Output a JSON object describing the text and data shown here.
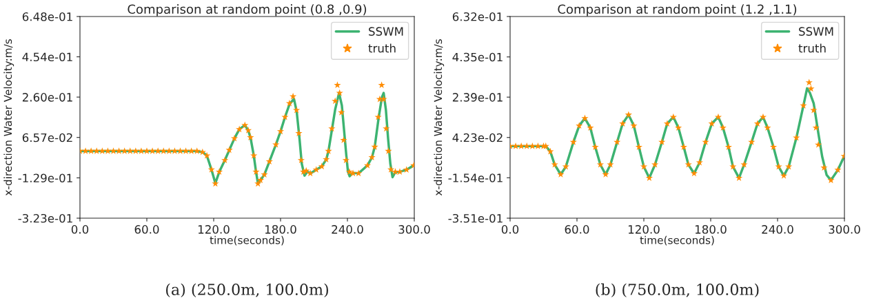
{
  "chart_data": [
    {
      "type": "line",
      "title": "Comparison at random point (0.8 ,0.9)",
      "xlabel": "time(seconds)",
      "ylabel": "x-direction Water Velocity:m/s",
      "annotations": [
        "(a) (250.0m, 100.0m)"
      ],
      "legend": "top right",
      "grid": false,
      "xlim": [
        0,
        300
      ],
      "xticks": [
        {
          "value": 0,
          "label": "0.0"
        },
        {
          "value": 60,
          "label": "60.0"
        },
        {
          "value": 120,
          "label": "120.0"
        },
        {
          "value": 180,
          "label": "180.0"
        },
        {
          "value": 240,
          "label": "240.0"
        },
        {
          "value": 300,
          "label": "300.0"
        }
      ],
      "ylim": [
        -0.323,
        0.648
      ],
      "yticks": [
        {
          "value": -0.323,
          "label": "-3.23e-01"
        },
        {
          "value": -0.129,
          "label": "-1.29e-01"
        },
        {
          "value": 0.0657,
          "label": "6.57e-02"
        },
        {
          "value": 0.26,
          "label": "2.60e-01"
        },
        {
          "value": 0.454,
          "label": "4.54e-01"
        },
        {
          "value": 0.648,
          "label": "6.48e-01"
        }
      ],
      "series": [
        {
          "name": "SSWM",
          "color": "#3cb371",
          "line_style": "solid",
          "x": [
            0,
            105,
            110,
            113.9,
            118,
            121.5,
            125,
            130,
            138.6,
            143,
            148,
            151,
            153,
            156,
            158,
            159.7,
            162,
            165.5,
            170,
            175.8,
            180,
            184,
            188,
            192,
            194.5,
            197,
            199,
            201.5,
            204,
            207,
            212,
            217,
            221,
            223,
            226,
            229,
            232.5,
            235,
            237,
            239,
            240.5,
            242,
            245,
            250,
            258,
            262,
            264.5,
            268,
            271,
            272.5,
            274.5,
            276.5,
            278.5,
            280.5,
            283,
            287,
            293,
            299.5
          ],
          "values": [
            0.0,
            0.0,
            -0.005,
            -0.022,
            -0.089,
            -0.155,
            -0.1,
            -0.044,
            0.061,
            0.105,
            0.125,
            0.1,
            0.066,
            -0.022,
            -0.1,
            -0.155,
            -0.14,
            -0.113,
            -0.05,
            0.031,
            0.095,
            0.164,
            0.225,
            0.252,
            0.19,
            0.06,
            -0.06,
            -0.118,
            -0.1,
            -0.107,
            -0.09,
            -0.074,
            -0.04,
            0.0,
            0.1,
            0.2,
            0.28,
            0.22,
            0.1,
            -0.02,
            -0.1,
            -0.121,
            -0.105,
            -0.107,
            -0.069,
            -0.03,
            0.02,
            0.16,
            0.26,
            0.28,
            0.2,
            0.06,
            -0.06,
            -0.126,
            -0.1,
            -0.1,
            -0.09,
            -0.069
          ]
        },
        {
          "name": "truth",
          "type": "scatter",
          "marker": "star",
          "color": "#ff8c00",
          "x": [
            0,
            5,
            10,
            15,
            20,
            25,
            30,
            35,
            40,
            45,
            50,
            55,
            60,
            65,
            70,
            75,
            80,
            85,
            90,
            95,
            100,
            105,
            110,
            113.9,
            118,
            121.5,
            125,
            130,
            134,
            138.6,
            143,
            148,
            151,
            153,
            156,
            158,
            159.7,
            162,
            165.5,
            170,
            175.8,
            180,
            184,
            188,
            191.2,
            194.3,
            196.4,
            198.5,
            200.5,
            203,
            206.7,
            212,
            217,
            221,
            223,
            226,
            229,
            231,
            233,
            234.6,
            236.6,
            238.7,
            241.8,
            245,
            250,
            258,
            262,
            264.5,
            267.6,
            269,
            270.7,
            272.5,
            274.8,
            276.8,
            279,
            283,
            287,
            293,
            299.5
          ],
          "values": [
            0.0,
            0.0,
            0.0,
            0.0,
            0.0,
            0.0,
            0.0,
            0.0,
            0.0,
            0.0,
            0.0,
            0.0,
            0.0,
            0.0,
            0.0,
            0.0,
            0.0,
            0.0,
            0.0,
            0.0,
            0.0,
            0.0,
            -0.005,
            -0.022,
            -0.089,
            -0.157,
            -0.1,
            -0.044,
            0.005,
            0.061,
            0.105,
            0.125,
            0.1,
            0.066,
            -0.022,
            -0.1,
            -0.157,
            -0.14,
            -0.113,
            -0.05,
            0.031,
            0.095,
            0.164,
            0.23,
            0.263,
            0.197,
            0.086,
            -0.044,
            -0.1,
            -0.095,
            -0.107,
            -0.09,
            -0.074,
            -0.04,
            0.0,
            0.108,
            0.241,
            0.318,
            0.28,
            0.186,
            0.053,
            -0.044,
            -0.1,
            -0.107,
            -0.107,
            -0.069,
            -0.03,
            0.02,
            0.164,
            0.25,
            0.318,
            0.25,
            0.108,
            0.0,
            -0.089,
            -0.1,
            -0.1,
            -0.09,
            -0.069
          ]
        }
      ]
    },
    {
      "type": "line",
      "title": "Comparison at random point (1.2 ,1.1)",
      "xlabel": "time(seconds)",
      "ylabel": "x-direction Water Velocity:m/s",
      "annotations": [
        "(b) (750.0m, 100.0m)"
      ],
      "legend": "top right",
      "grid": false,
      "xlim": [
        0,
        300
      ],
      "xticks": [
        {
          "value": 0,
          "label": "0.0"
        },
        {
          "value": 60,
          "label": "60.0"
        },
        {
          "value": 120,
          "label": "120.0"
        },
        {
          "value": 180,
          "label": "180.0"
        },
        {
          "value": 240,
          "label": "240.0"
        },
        {
          "value": 300,
          "label": "300.0"
        }
      ],
      "ylim": [
        -0.351,
        0.632
      ],
      "yticks": [
        {
          "value": -0.351,
          "label": "-3.51e-01"
        },
        {
          "value": -0.154,
          "label": "-1.54e-01"
        },
        {
          "value": 0.0423,
          "label": "4.23e-02"
        },
        {
          "value": 0.239,
          "label": "2.39e-01"
        },
        {
          "value": 0.435,
          "label": "4.35e-01"
        },
        {
          "value": 0.632,
          "label": "6.32e-01"
        }
      ],
      "series": [
        {
          "name": "SSWM",
          "color": "#3cb371",
          "line_style": "solid",
          "x": [
            0,
            32,
            36.1,
            40,
            45.4,
            50,
            56.8,
            62,
            67.1,
            72,
            76.4,
            81,
            85.7,
            90,
            96,
            101,
            106.3,
            111,
            115.6,
            120,
            124.9,
            130,
            136.2,
            141,
            146.5,
            151,
            155.8,
            160,
            165.1,
            170,
            175.4,
            181,
            186.8,
            191,
            196,
            200,
            205.4,
            210,
            216.7,
            222,
            227,
            231,
            236.3,
            241,
            245.6,
            250,
            256.9,
            263.2,
            266.5,
            269,
            272.4,
            276.6,
            280,
            284,
            287.9,
            294.1,
            299.8
          ],
          "values": [
            0.0,
            0.0,
            -0.026,
            -0.09,
            -0.138,
            -0.1,
            0.02,
            0.1,
            0.136,
            0.09,
            -0.004,
            -0.09,
            -0.138,
            -0.09,
            0.02,
            0.11,
            0.153,
            0.1,
            -0.004,
            -0.1,
            -0.155,
            -0.09,
            0.02,
            0.11,
            0.142,
            0.09,
            -0.004,
            -0.09,
            -0.133,
            -0.08,
            0.02,
            0.11,
            0.142,
            0.09,
            -0.004,
            -0.1,
            -0.155,
            -0.09,
            0.02,
            0.11,
            0.142,
            0.09,
            -0.004,
            -0.1,
            -0.144,
            -0.1,
            0.041,
            0.198,
            0.282,
            0.26,
            0.209,
            0.063,
            -0.05,
            -0.14,
            -0.166,
            -0.116,
            -0.049
          ]
        },
        {
          "name": "truth",
          "type": "scatter",
          "marker": "star",
          "color": "#ff8c00",
          "x": [
            0,
            5,
            10,
            15,
            20,
            25,
            30,
            32,
            36.1,
            40,
            45.4,
            50,
            56.8,
            62,
            67.1,
            72,
            76.4,
            81,
            85.7,
            90,
            96,
            101,
            106.3,
            111,
            115.6,
            120,
            124.9,
            130,
            136.2,
            141,
            146.5,
            151,
            155.8,
            160,
            165.1,
            170,
            175.4,
            181,
            186.8,
            191,
            196,
            200,
            205.4,
            210,
            216.7,
            222,
            227,
            231,
            236.3,
            241,
            245.6,
            250,
            256.9,
            263.2,
            268.3,
            270,
            272.4,
            274.5,
            276.6,
            281.7,
            287.9,
            294.1,
            299.8
          ],
          "values": [
            0.0,
            0.0,
            0.0,
            0.0,
            0.0,
            0.0,
            0.0,
            0.0,
            -0.026,
            -0.09,
            -0.138,
            -0.1,
            0.02,
            0.1,
            0.136,
            0.09,
            -0.004,
            -0.09,
            -0.138,
            -0.09,
            0.02,
            0.11,
            0.153,
            0.1,
            -0.004,
            -0.1,
            -0.155,
            -0.09,
            0.02,
            0.11,
            0.142,
            0.09,
            -0.004,
            -0.09,
            -0.133,
            -0.08,
            0.02,
            0.11,
            0.142,
            0.09,
            -0.004,
            -0.1,
            -0.155,
            -0.09,
            0.02,
            0.11,
            0.142,
            0.09,
            -0.004,
            -0.1,
            -0.144,
            -0.1,
            0.041,
            0.198,
            0.31,
            0.28,
            0.175,
            0.09,
            0.007,
            -0.105,
            -0.166,
            -0.116,
            -0.049
          ]
        }
      ]
    }
  ]
}
